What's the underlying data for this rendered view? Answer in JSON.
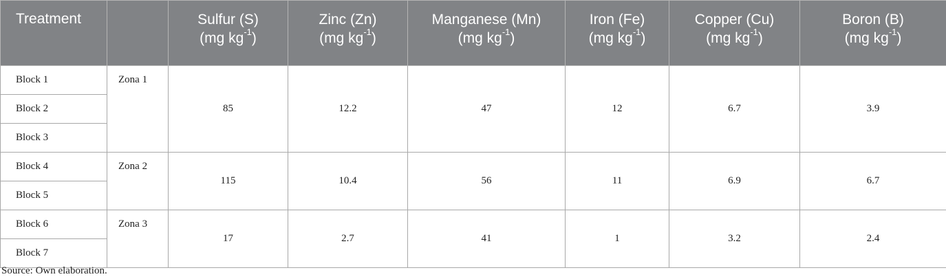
{
  "header": {
    "treatment": "Treatment",
    "columns": [
      {
        "name": "Sulfur (S)",
        "unit": "(mg kg",
        "exp": "-1",
        "close": ")"
      },
      {
        "name": "Zinc (Zn)",
        "unit": "(mg kg",
        "exp": "-1",
        "close": ")"
      },
      {
        "name": "Manganese (Mn)",
        "unit": "(mg kg",
        "exp": "-1",
        "close": ")"
      },
      {
        "name": "Iron (Fe)",
        "unit": "(mg kg",
        "exp": "-1",
        "close": ")"
      },
      {
        "name": "Copper (Cu)",
        "unit": "(mg kg",
        "exp": "-1",
        "close": ")"
      },
      {
        "name": "Boron (B)",
        "unit": "(mg kg",
        "exp": "-1",
        "close": ")"
      }
    ]
  },
  "table": {
    "groups": [
      {
        "zone": "Zona 1",
        "blocks": [
          "Block 1",
          "Block 2",
          "Block 3"
        ],
        "values": [
          85,
          12.2,
          47,
          12,
          6.7,
          3.9
        ]
      },
      {
        "zone": "Zona 2",
        "blocks": [
          "Block 4",
          "Block 5"
        ],
        "values": [
          115,
          10.4,
          56,
          11,
          6.9,
          6.7
        ]
      },
      {
        "zone": "Zona 3",
        "blocks": [
          "Block 6",
          "Block 7"
        ],
        "values": [
          17,
          2.7,
          41,
          1,
          3.2,
          2.4
        ]
      }
    ]
  },
  "footer": {
    "source": "Source: Own elaboration."
  }
}
